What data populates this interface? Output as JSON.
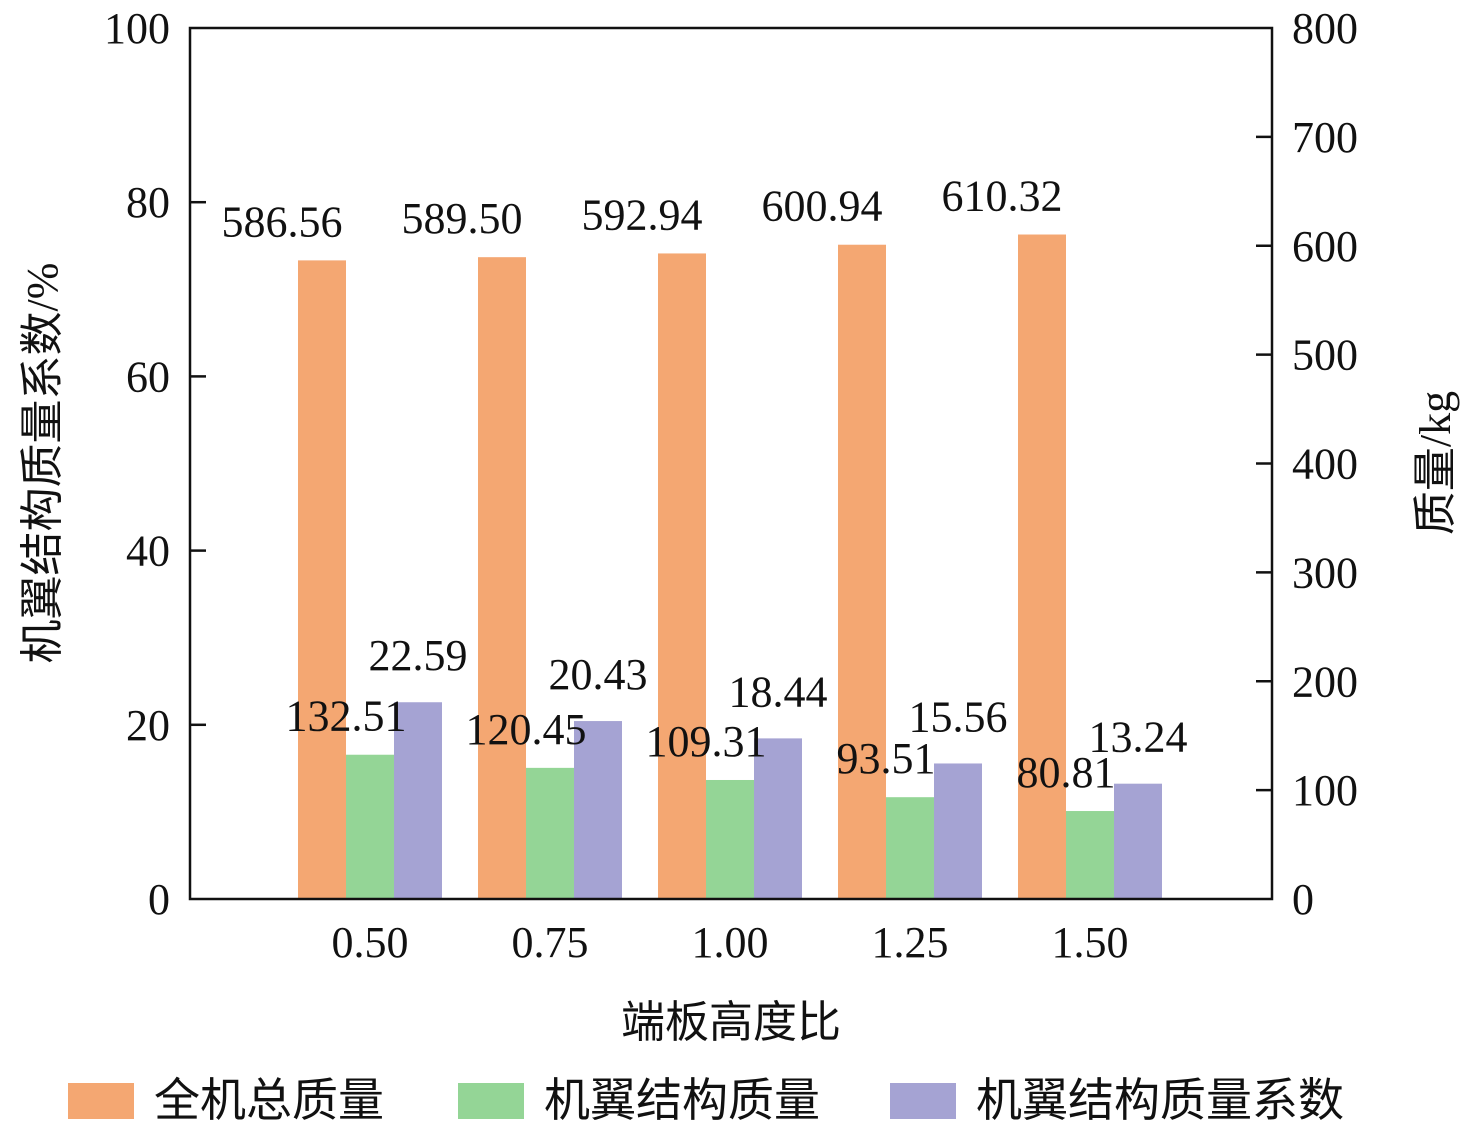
{
  "chart_data": {
    "type": "bar",
    "categories": [
      "0.50",
      "0.75",
      "1.00",
      "1.25",
      "1.50"
    ],
    "xlabel": "端板高度比",
    "ylabel_left": "机翼结构质量系数/%",
    "ylabel_right": "质量/kg",
    "ylim_left": [
      0,
      100
    ],
    "ylim_right": [
      0,
      800
    ],
    "yticks_left": [
      "0",
      "20",
      "40",
      "60",
      "80",
      "100"
    ],
    "yticks_right": [
      "0",
      "100",
      "200",
      "300",
      "400",
      "500",
      "600",
      "700",
      "800"
    ],
    "grid": false,
    "legend_position": "bottom",
    "series": [
      {
        "name": "全机总质量",
        "axis": "right",
        "color": "#f4a772",
        "values": [
          586.56,
          589.5,
          592.94,
          600.94,
          610.32
        ],
        "labels": [
          "586.56",
          "589.50",
          "592.94",
          "600.94",
          "610.32"
        ]
      },
      {
        "name": "机翼结构质量",
        "axis": "right",
        "color": "#94d596",
        "values": [
          132.51,
          120.45,
          109.31,
          93.51,
          80.81
        ],
        "labels": [
          "132.51",
          "120.45",
          "109.31",
          "93.51",
          "80.81"
        ]
      },
      {
        "name": "机翼结构质量系数",
        "axis": "left",
        "color": "#a5a3d3",
        "values": [
          22.59,
          20.43,
          18.44,
          15.56,
          13.24
        ],
        "labels": [
          "22.59",
          "20.43",
          "18.44",
          "15.56",
          "13.24"
        ]
      }
    ]
  }
}
